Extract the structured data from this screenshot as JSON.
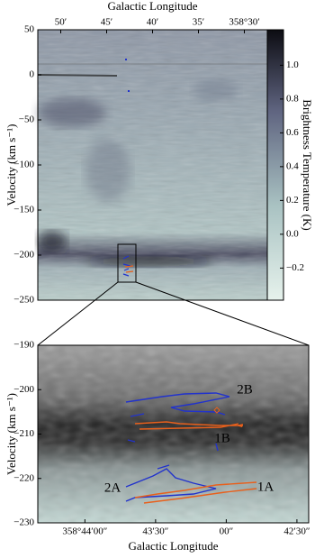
{
  "chart_data": [
    {
      "type": "image",
      "x_label": "Galactic Longitude",
      "y_label": "Velocity (km s⁻¹)",
      "xlim": [
        52.5,
        27.5
      ],
      "xticks": [
        {
          "value": 50,
          "label": "50′"
        },
        {
          "value": 45,
          "label": "45′"
        },
        {
          "value": 40,
          "label": "40′"
        },
        {
          "value": 35,
          "label": "35′"
        },
        {
          "value": 30,
          "label": "358°30′"
        }
      ],
      "ylim": [
        -250,
        50
      ],
      "yticks": [
        50,
        0,
        {
          "value": -50,
          "label": "−50"
        },
        {
          "value": -100,
          "label": "−100"
        },
        {
          "value": -150,
          "label": "−150"
        },
        {
          "value": -200,
          "label": "−200"
        },
        {
          "value": -250,
          "label": "−250"
        }
      ],
      "colorbar": {
        "label": "Brightness Temperature (K)",
        "lim": [
          -0.39,
          1.21
        ],
        "ticks": [
          {
            "value": 1,
            "label": "1.0"
          },
          0.8,
          0.6,
          0.4,
          0.2,
          {
            "value": 0,
            "label": "0.0"
          },
          {
            "value": -0.2,
            "label": "−0.2"
          }
        ]
      }
    },
    {
      "type": "image",
      "x_label": "Galactic Longitude",
      "y_label": "Velocity (km s⁻¹)",
      "xlim": [
        140,
        25
      ],
      "xticks": [
        {
          "value": 120,
          "label": "358°44′00″"
        },
        {
          "value": 90,
          "label": "43′30″"
        },
        {
          "value": 60,
          "label": "00″"
        },
        {
          "value": 30,
          "label": "42′30″"
        }
      ],
      "ylim": [
        -230,
        -190
      ],
      "yticks": [
        {
          "value": -190,
          "label": "−190"
        },
        {
          "value": -200,
          "label": "−200"
        },
        {
          "value": -210,
          "label": "−210"
        },
        {
          "value": -220,
          "label": "−220"
        },
        {
          "value": -230,
          "label": "−230"
        }
      ],
      "annotations": [
        {
          "text": "2B",
          "color": "#2233cc"
        },
        {
          "text": "1B",
          "color": "#e8601c"
        },
        {
          "text": "2A",
          "color": "#2233cc"
        },
        {
          "text": "1A",
          "color": "#e8601c"
        }
      ]
    }
  ]
}
